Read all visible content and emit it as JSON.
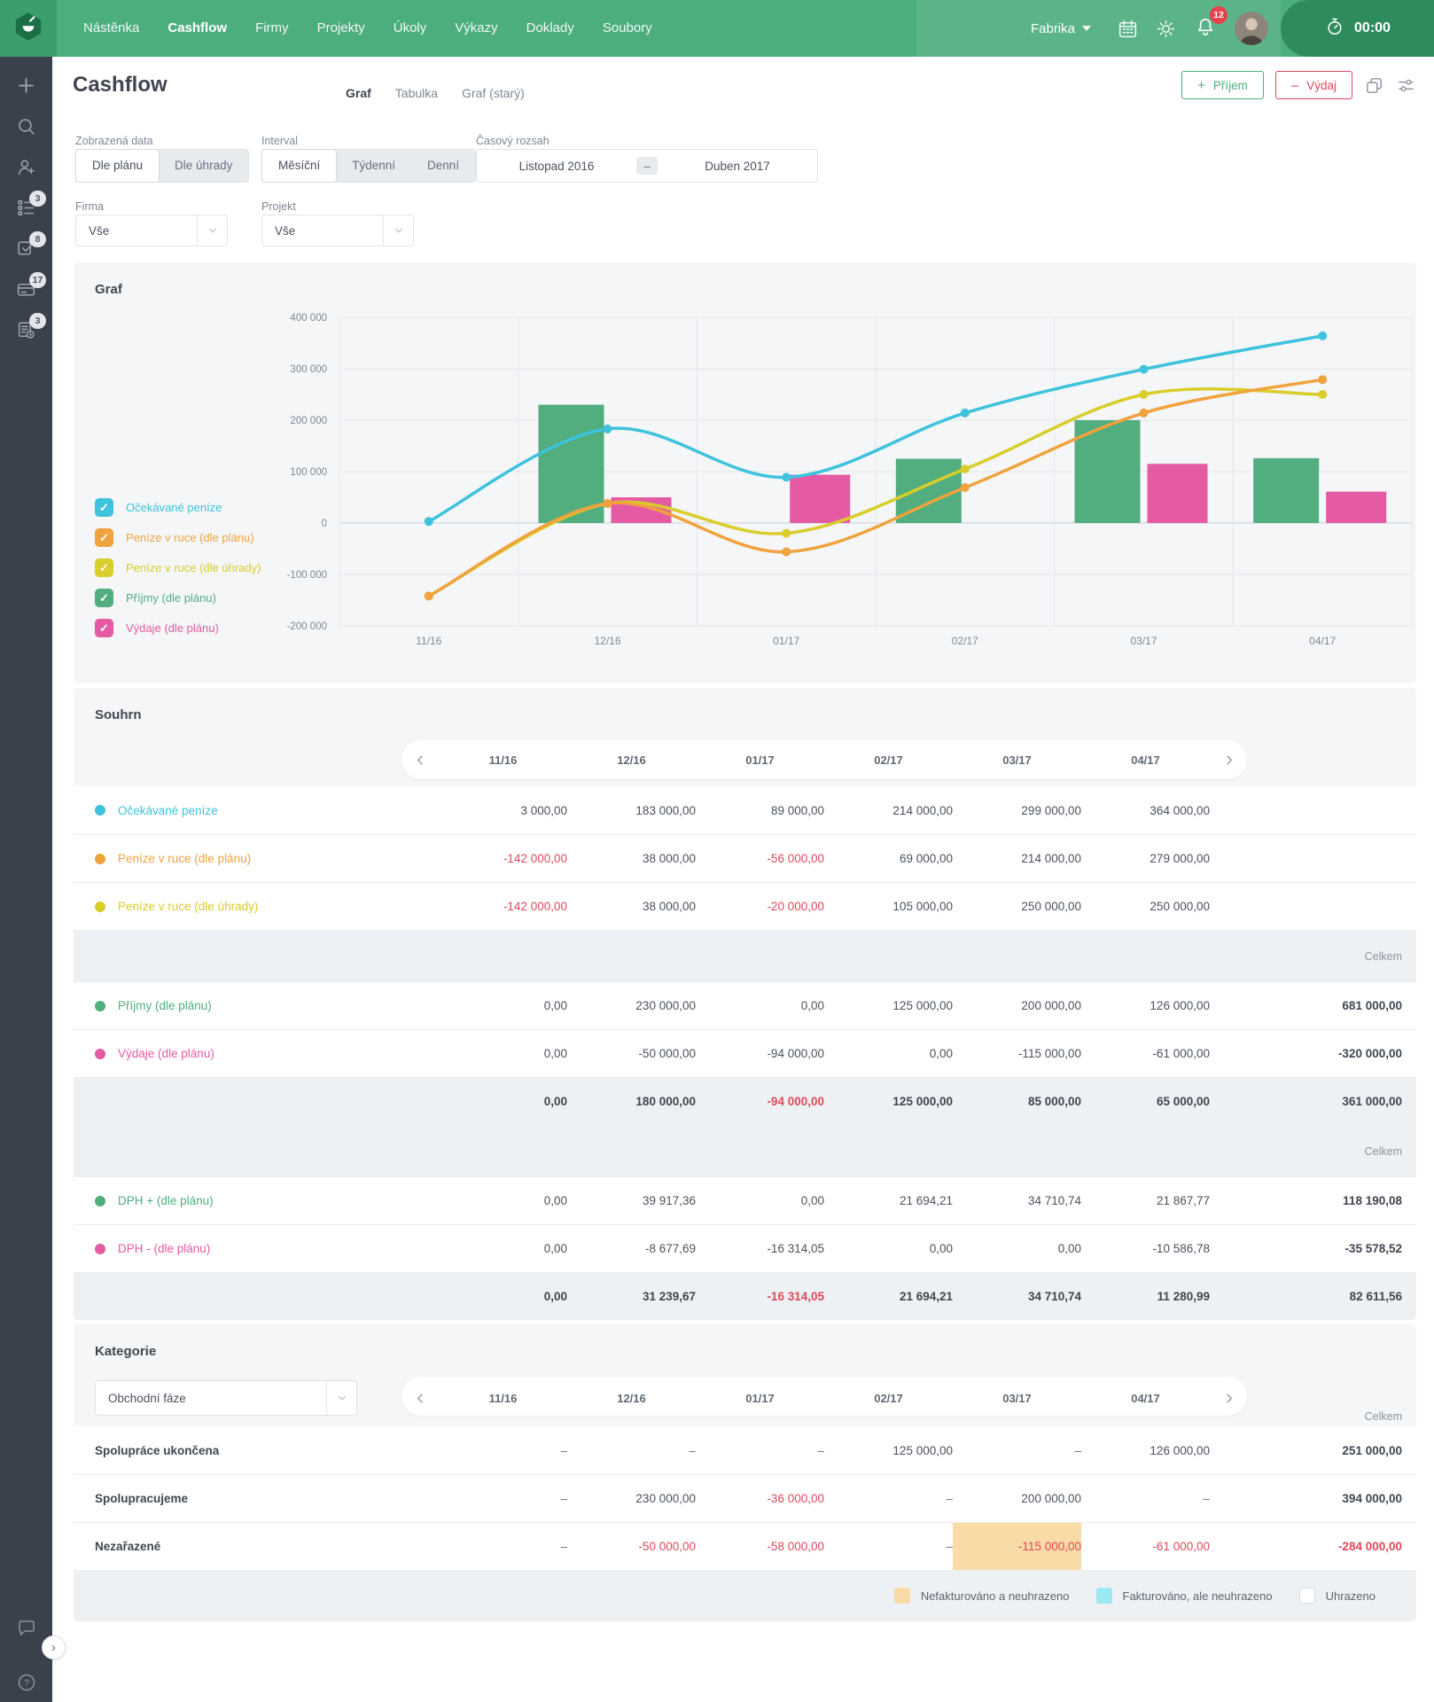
{
  "topbar": {
    "nav_items": [
      {
        "label": "Nástěnka",
        "active": false
      },
      {
        "label": "Cashflow",
        "active": true
      },
      {
        "label": "Firmy",
        "active": false
      },
      {
        "label": "Projekty",
        "active": false
      },
      {
        "label": "Úkoly",
        "active": false
      },
      {
        "label": "Výkazy",
        "active": false
      },
      {
        "label": "Doklady",
        "active": false
      },
      {
        "label": "Soubory",
        "active": false
      }
    ],
    "workspace": "Fabrika",
    "notification_count": "12",
    "timer": "00:00",
    "bar_color": "#4cae7d",
    "timer_color": "#2e8c5c"
  },
  "sidebar": {
    "items": [
      {
        "icon": "plus-icon",
        "badge": ""
      },
      {
        "icon": "search-icon",
        "badge": ""
      },
      {
        "icon": "add-person-icon",
        "badge": ""
      },
      {
        "icon": "checklist-icon",
        "badge": "3"
      },
      {
        "icon": "task-check-icon",
        "badge": "8"
      },
      {
        "icon": "card-icon",
        "badge": "17"
      },
      {
        "icon": "document-clock-icon",
        "badge": "3"
      }
    ],
    "bottom_items": [
      {
        "icon": "chat-icon"
      },
      {
        "icon": "help-icon"
      }
    ]
  },
  "header": {
    "title": "Cashflow",
    "tabs": [
      {
        "label": "Graf",
        "active": true
      },
      {
        "label": "Tabulka",
        "active": false
      },
      {
        "label": "Graf (starý)",
        "active": false
      }
    ],
    "income_button": "Příjem",
    "expense_button": "Výdaj"
  },
  "filters": {
    "zobrazena_data": {
      "label": "Zobrazená data",
      "options": [
        "Dle plánu",
        "Dle úhrady"
      ],
      "selected": "Dle plánu"
    },
    "interval": {
      "label": "Interval",
      "options": [
        "Měsíční",
        "Týdenní",
        "Denní"
      ],
      "selected": "Měsíční"
    },
    "casovy_rozsah": {
      "label": "Časový rozsah",
      "from": "Listopad 2016",
      "separator": "–",
      "to": "Duben 2017"
    },
    "firma": {
      "label": "Firma",
      "value": "Vše"
    },
    "projekt": {
      "label": "Projekt",
      "value": "Vše"
    }
  },
  "graf": {
    "title": "Graf"
  },
  "chart_data": {
    "type": "mixed",
    "categories": [
      "11/16",
      "12/16",
      "01/17",
      "02/17",
      "03/17",
      "04/17"
    ],
    "series": [
      {
        "name": "Očekávané peníze",
        "type": "line",
        "color": "#3fc2dc",
        "values": [
          3000,
          183000,
          89000,
          214000,
          299000,
          364000
        ]
      },
      {
        "name": "Peníze v ruce (dle plánu)",
        "type": "line",
        "color": "#f0a23c",
        "values": [
          -142000,
          38000,
          -56000,
          69000,
          214000,
          279000
        ]
      },
      {
        "name": "Peníze v ruce (dle úhrady)",
        "type": "line",
        "color": "#d9cd2a",
        "values": [
          -142000,
          38000,
          -20000,
          105000,
          250000,
          250000
        ]
      },
      {
        "name": "Příjmy (dle plánu)",
        "type": "bar",
        "color": "#52ad7f",
        "values": [
          0,
          230000,
          0,
          125000,
          200000,
          126000
        ]
      },
      {
        "name": "Výdaje (dle plánu)",
        "type": "bar",
        "color": "#e45ba4",
        "values": [
          0,
          50000,
          94000,
          0,
          115000,
          61000
        ]
      }
    ],
    "ylim": [
      -200000,
      400000
    ],
    "ytick_step": 100000,
    "yticks": [
      "400 000",
      "300 000",
      "200 000",
      "100 000",
      "0",
      "-100 000",
      "-200 000"
    ],
    "grid": true,
    "legend_position": "left"
  },
  "souhrn": {
    "title": "Souhrn",
    "celkem_label": "Celkem",
    "months": [
      "11/16",
      "12/16",
      "01/17",
      "02/17",
      "03/17",
      "04/17"
    ],
    "rows": [
      {
        "type": "series",
        "label": "Očekávané peníze",
        "color": "#3fc2dc",
        "values": [
          "3 000,00",
          "183 000,00",
          "89 000,00",
          "214 000,00",
          "299 000,00",
          "364 000,00"
        ],
        "red": [],
        "total": ""
      },
      {
        "type": "series",
        "label": "Peníze v ruce (dle plánu)",
        "color": "#f0a23c",
        "values": [
          "-142 000,00",
          "38 000,00",
          "-56 000,00",
          "69 000,00",
          "214 000,00",
          "279 000,00"
        ],
        "red": [
          0,
          2
        ],
        "total": ""
      },
      {
        "type": "series",
        "label": "Peníze v ruce (dle úhrady)",
        "color": "#d9cd2a",
        "values": [
          "-142 000,00",
          "38 000,00",
          "-20 000,00",
          "105 000,00",
          "250 000,00",
          "250 000,00"
        ],
        "red": [
          0,
          2
        ],
        "total": ""
      },
      {
        "type": "band"
      },
      {
        "type": "series",
        "label": "Příjmy (dle plánu)",
        "color": "#52ad7f",
        "values": [
          "0,00",
          "230 000,00",
          "0,00",
          "125 000,00",
          "200 000,00",
          "126 000,00"
        ],
        "red": [],
        "total": "681 000,00"
      },
      {
        "type": "series",
        "label": "Výdaje (dle plánu)",
        "color": "#e45ba4",
        "values": [
          "0,00",
          "-50 000,00",
          "-94 000,00",
          "0,00",
          "-115 000,00",
          "-61 000,00"
        ],
        "red": [],
        "total": "-320 000,00"
      },
      {
        "type": "totals",
        "values": [
          "0,00",
          "180 000,00",
          "-94 000,00",
          "125 000,00",
          "85 000,00",
          "65 000,00"
        ],
        "red": [
          2
        ],
        "total": "361 000,00"
      },
      {
        "type": "band"
      },
      {
        "type": "series",
        "label": "DPH + (dle plánu)",
        "color": "#52ad7f",
        "values": [
          "0,00",
          "39 917,36",
          "0,00",
          "21 694,21",
          "34 710,74",
          "21 867,77"
        ],
        "red": [],
        "total": "118 190,08"
      },
      {
        "type": "series",
        "label": "DPH - (dle plánu)",
        "color": "#e45ba4",
        "values": [
          "0,00",
          "-8 677,69",
          "-16 314,05",
          "0,00",
          "0,00",
          "-10 586,78"
        ],
        "red": [],
        "total": "-35 578,52"
      },
      {
        "type": "totals",
        "values": [
          "0,00",
          "31 239,67",
          "-16 314,05",
          "21 694,21",
          "34 710,74",
          "11 280,99"
        ],
        "red": [
          2
        ],
        "total": "82 611,56"
      }
    ]
  },
  "kategorie": {
    "title": "Kategorie",
    "filter_value": "Obchodní fáze",
    "celkem_label": "Celkem",
    "months": [
      "11/16",
      "12/16",
      "01/17",
      "02/17",
      "03/17",
      "04/17"
    ],
    "rows": [
      {
        "label": "Spolupráce ukončena",
        "values": [
          "–",
          "–",
          "–",
          "125 000,00",
          "–",
          "126 000,00"
        ],
        "red": [],
        "highlight": [],
        "total": "251 000,00",
        "total_red": false
      },
      {
        "label": "Spolupracujeme",
        "values": [
          "–",
          "230 000,00",
          "-36 000,00",
          "–",
          "200 000,00",
          "–"
        ],
        "red": [
          2
        ],
        "highlight": [],
        "total": "394 000,00",
        "total_red": false
      },
      {
        "label": "Nezařazené",
        "values": [
          "–",
          "-50 000,00",
          "-58 000,00",
          "–",
          "-115 000,00",
          "-61 000,00"
        ],
        "red": [
          1,
          2,
          4,
          5
        ],
        "highlight": [
          4
        ],
        "total": "-284 000,00",
        "total_red": true
      }
    ],
    "status_legend": [
      {
        "label": "Nefakturováno a neuhrazeno",
        "color": "#f8dba6"
      },
      {
        "label": "Fakturováno, ale neuhrazeno",
        "color": "#9ae9f2"
      },
      {
        "label": "Uhrazeno",
        "color": "#ffffff"
      }
    ]
  }
}
